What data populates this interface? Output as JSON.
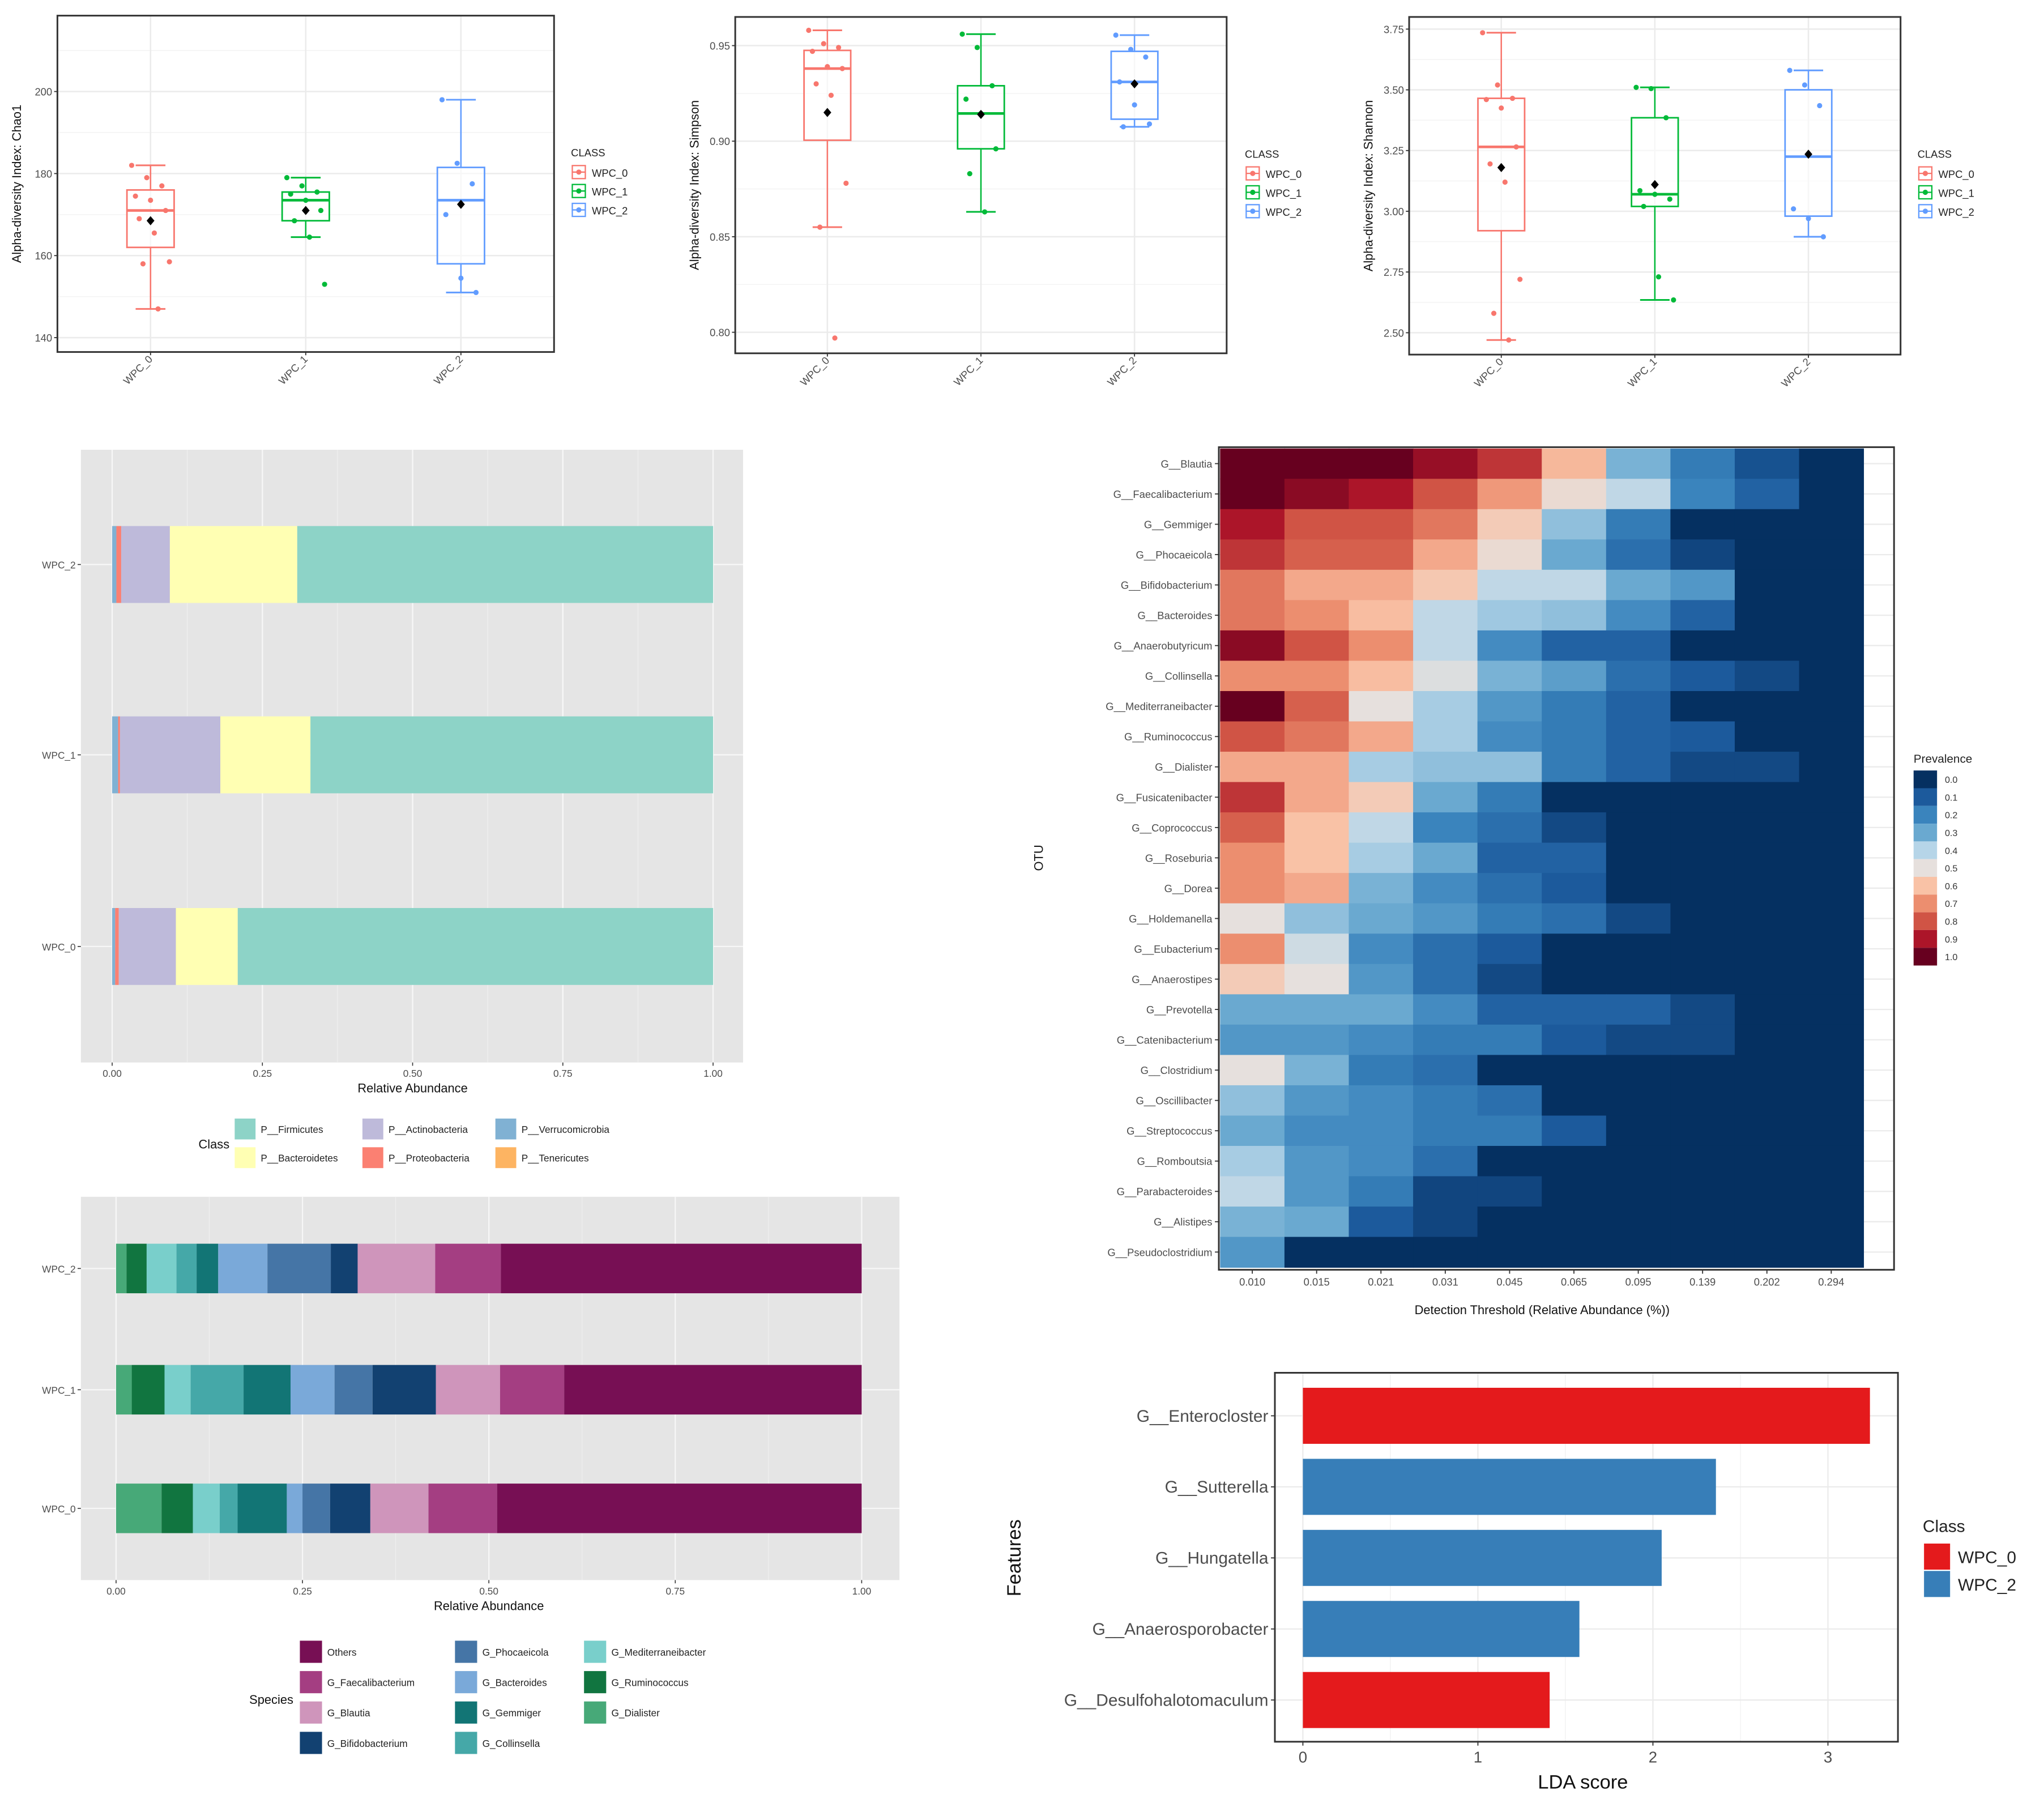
{
  "chart_data": [
    {
      "type": "box",
      "id": "chao1",
      "ylabel": "Alpha-diversity Index: Chao1",
      "ylim": [
        136.5,
        218.5
      ],
      "yticks": [
        140,
        160,
        180,
        200
      ],
      "categories": [
        "WPC_0",
        "WPC_1",
        "WPC_2"
      ],
      "legend_title": "CLASS",
      "colors": [
        "#f8766d",
        "#00ba38",
        "#619cff"
      ],
      "boxes": [
        {
          "whisker_low": 147,
          "q1": 162,
          "median": 171,
          "q3": 176,
          "whisker_high": 182,
          "mean": 168.5,
          "points": [
            182,
            179,
            177,
            174.5,
            173.5,
            171,
            169,
            165.5,
            158.5,
            158,
            147
          ]
        },
        {
          "whisker_low": 164.5,
          "q1": 168.5,
          "median": 173.5,
          "q3": 175.5,
          "whisker_high": 179,
          "mean": 171,
          "points": [
            179,
            177,
            175.5,
            175,
            173.5,
            171,
            168.5,
            164.5,
            153
          ]
        },
        {
          "whisker_low": 151,
          "q1": 158,
          "median": 173.5,
          "q3": 181.5,
          "whisker_high": 198,
          "mean": 172.5,
          "points": [
            198,
            182.5,
            177.5,
            170,
            154.5,
            151
          ]
        }
      ]
    },
    {
      "type": "box",
      "id": "simpson",
      "ylabel": "Alpha-diversity Index: Simpson",
      "ylim": [
        0.789,
        0.965
      ],
      "yticks": [
        0.8,
        0.85,
        0.9,
        0.95
      ],
      "ytick_labels": [
        "0.80",
        "0.85",
        "0.90",
        "0.95"
      ],
      "categories": [
        "WPC_0",
        "WPC_1",
        "WPC_2"
      ],
      "legend_title": "CLASS",
      "colors": [
        "#f8766d",
        "#00ba38",
        "#619cff"
      ],
      "boxes": [
        {
          "whisker_low": 0.855,
          "q1": 0.9005,
          "median": 0.938,
          "q3": 0.9475,
          "whisker_high": 0.958,
          "mean": 0.915,
          "points": [
            0.958,
            0.951,
            0.949,
            0.947,
            0.939,
            0.938,
            0.93,
            0.924,
            0.878,
            0.855,
            0.797
          ]
        },
        {
          "whisker_low": 0.863,
          "q1": 0.896,
          "median": 0.9145,
          "q3": 0.929,
          "whisker_high": 0.956,
          "mean": 0.914,
          "points": [
            0.956,
            0.949,
            0.929,
            0.922,
            0.9145,
            0.896,
            0.883,
            0.863
          ]
        },
        {
          "whisker_low": 0.9075,
          "q1": 0.9115,
          "median": 0.931,
          "q3": 0.947,
          "whisker_high": 0.9555,
          "mean": 0.93,
          "points": [
            0.9555,
            0.948,
            0.944,
            0.931,
            0.919,
            0.909,
            0.9075
          ]
        }
      ]
    },
    {
      "type": "box",
      "id": "shannon",
      "ylabel": "Alpha-diversity Index: Shannon",
      "ylim": [
        2.41,
        3.8
      ],
      "yticks": [
        2.5,
        2.75,
        3.0,
        3.25,
        3.5,
        3.75
      ],
      "ytick_labels": [
        "2.50",
        "2.75",
        "3.00",
        "3.25",
        "3.50",
        "3.75"
      ],
      "categories": [
        "WPC_0",
        "WPC_1",
        "WPC_2"
      ],
      "legend_title": "CLASS",
      "colors": [
        "#f8766d",
        "#00ba38",
        "#619cff"
      ],
      "boxes": [
        {
          "whisker_low": 2.47,
          "q1": 2.92,
          "median": 3.265,
          "q3": 3.465,
          "whisker_high": 3.735,
          "mean": 3.18,
          "points": [
            3.735,
            3.52,
            3.465,
            3.46,
            3.425,
            3.265,
            3.195,
            3.12,
            2.72,
            2.58,
            2.47
          ]
        },
        {
          "whisker_low": 2.635,
          "q1": 3.02,
          "median": 3.07,
          "q3": 3.385,
          "whisker_high": 3.51,
          "mean": 3.11,
          "points": [
            3.51,
            3.505,
            3.385,
            3.085,
            3.07,
            3.05,
            3.02,
            2.73,
            2.635
          ]
        },
        {
          "whisker_low": 2.895,
          "q1": 2.98,
          "median": 3.225,
          "q3": 3.5,
          "whisker_high": 3.58,
          "mean": 3.235,
          "points": [
            3.58,
            3.52,
            3.435,
            3.01,
            2.97,
            2.895
          ]
        }
      ]
    },
    {
      "type": "bar",
      "id": "phylum",
      "orientation": "horizontal-stacked",
      "xlabel": "Relative Abundance",
      "xlim": [
        0,
        1
      ],
      "xticks": [
        0,
        0.25,
        0.5,
        0.75,
        1
      ],
      "xtick_labels": [
        "0.00",
        "0.25",
        "0.50",
        "0.75",
        "1.00"
      ],
      "categories": [
        "WPC_2",
        "WPC_1",
        "WPC_0"
      ],
      "legend_title": "Class",
      "series": [
        {
          "name": "P__Verrucomicrobia",
          "color": "#80b1d3",
          "values": [
            0.007,
            0.01,
            0.005
          ]
        },
        {
          "name": "P__Proteobacteria",
          "color": "#fb8072",
          "values": [
            0.008,
            0.003,
            0.006
          ]
        },
        {
          "name": "P__Actinobacteria",
          "color": "#bebada",
          "values": [
            0.081,
            0.167,
            0.095
          ]
        },
        {
          "name": "P__Bacteroidetes",
          "color": "#ffffb3",
          "values": [
            0.212,
            0.15,
            0.103
          ]
        },
        {
          "name": "P__Firmicutes",
          "color": "#8dd3c7",
          "values": [
            0.692,
            0.67,
            0.791
          ]
        },
        {
          "name": "P__Tenericutes",
          "color": "#fdb462",
          "values": [
            0,
            0,
            0
          ]
        }
      ],
      "legend_order": [
        "P__Firmicutes",
        "P__Bacteroidetes",
        "P__Actinobacteria",
        "P__Proteobacteria",
        "P__Verrucomicrobia",
        "P__Tenericutes"
      ]
    },
    {
      "type": "bar",
      "id": "species",
      "orientation": "horizontal-stacked",
      "xlabel": "Relative Abundance",
      "xlim": [
        0,
        1
      ],
      "xticks": [
        0,
        0.25,
        0.5,
        0.75,
        1
      ],
      "xtick_labels": [
        "0.00",
        "0.25",
        "0.50",
        "0.75",
        "1.00"
      ],
      "categories": [
        "WPC_2",
        "WPC_1",
        "WPC_0"
      ],
      "legend_title": "Species",
      "series": [
        {
          "name": "G_Dialister",
          "color": "#47a978",
          "values": [
            0.014,
            0.021,
            0.061
          ]
        },
        {
          "name": "G_Ruminococcus",
          "color": "#117540",
          "values": [
            0.027,
            0.044,
            0.042
          ]
        },
        {
          "name": "G_Mediterraneibacter",
          "color": "#79cfcb",
          "values": [
            0.04,
            0.035,
            0.036
          ]
        },
        {
          "name": "G_Collinsella",
          "color": "#45a8a8",
          "values": [
            0.027,
            0.071,
            0.024
          ]
        },
        {
          "name": "G_Gemmiger",
          "color": "#127575",
          "values": [
            0.029,
            0.063,
            0.066
          ]
        },
        {
          "name": "G_Bacteroides",
          "color": "#7aa9d9",
          "values": [
            0.066,
            0.059,
            0.021
          ]
        },
        {
          "name": "G_Phocaeicola",
          "color": "#4575a6",
          "values": [
            0.085,
            0.051,
            0.037
          ]
        },
        {
          "name": "G_Bifidobacterium",
          "color": "#124171",
          "values": [
            0.036,
            0.085,
            0.054
          ]
        },
        {
          "name": "G_Blautia",
          "color": "#cf95bb",
          "values": [
            0.104,
            0.086,
            0.078
          ]
        },
        {
          "name": "G_Faecalibacterium",
          "color": "#a43e82",
          "values": [
            0.088,
            0.086,
            0.092
          ]
        },
        {
          "name": "Others",
          "color": "#770f54",
          "values": [
            0.484,
            0.399,
            0.489
          ]
        }
      ],
      "legend_order": [
        "Others",
        "G_Faecalibacterium",
        "G_Blautia",
        "G_Bifidobacterium",
        "G_Phocaeicola",
        "G_Bacteroides",
        "G_Gemmiger",
        "G_Collinsella",
        "G_Mediterraneibacter",
        "G_Ruminococcus",
        "G_Dialister"
      ]
    },
    {
      "type": "heatmap",
      "id": "core-heatmap",
      "xlabel": "Detection Threshold (Relative Abundance (%))",
      "ylabel": "OTU",
      "x": [
        "0.010",
        "0.015",
        "0.021",
        "0.031",
        "0.045",
        "0.065",
        "0.095",
        "0.139",
        "0.202",
        "0.294"
      ],
      "y": [
        "G__Blautia",
        "G__Faecalibacterium",
        "G__Gemmiger",
        "G__Phocaeicola",
        "G__Bifidobacterium",
        "G__Bacteroides",
        "G__Anaerobutyricum",
        "G__Collinsella",
        "G__Mediterraneibacter",
        "G__Ruminococcus",
        "G__Dialister",
        "G__Fusicatenibacter",
        "G__Coprococcus",
        "G__Roseburia",
        "G__Dorea",
        "G__Holdemanella",
        "G__Eubacterium",
        "G__Anaerostipes",
        "G__Prevotella",
        "G__Catenibacterium",
        "G__Clostridium",
        "G__Oscillibacter",
        "G__Streptococcus",
        "G__Romboutsia",
        "G__Parabacteroides",
        "G__Alistipes",
        "G__Pseudoclostridium"
      ],
      "values": [
        [
          1.0,
          1.0,
          1.0,
          0.93,
          0.85,
          0.62,
          0.32,
          0.18,
          0.08,
          0.0
        ],
        [
          1.0,
          0.95,
          0.9,
          0.8,
          0.68,
          0.52,
          0.42,
          0.2,
          0.12,
          0.0
        ],
        [
          0.9,
          0.8,
          0.8,
          0.74,
          0.57,
          0.35,
          0.18,
          0.0,
          0.0,
          0.0
        ],
        [
          0.85,
          0.78,
          0.78,
          0.65,
          0.52,
          0.3,
          0.15,
          0.05,
          0.0,
          0.0
        ],
        [
          0.74,
          0.65,
          0.65,
          0.58,
          0.42,
          0.42,
          0.3,
          0.25,
          0.0,
          0.0
        ],
        [
          0.74,
          0.7,
          0.61,
          0.42,
          0.37,
          0.35,
          0.22,
          0.12,
          0.0,
          0.0
        ],
        [
          0.95,
          0.8,
          0.7,
          0.42,
          0.22,
          0.12,
          0.12,
          0.0,
          0.0,
          0.0
        ],
        [
          0.7,
          0.7,
          0.61,
          0.48,
          0.32,
          0.27,
          0.15,
          0.1,
          0.06,
          0.0
        ],
        [
          1.0,
          0.78,
          0.5,
          0.38,
          0.25,
          0.18,
          0.12,
          0.0,
          0.0,
          0.0
        ],
        [
          0.8,
          0.74,
          0.65,
          0.38,
          0.22,
          0.18,
          0.12,
          0.1,
          0.0,
          0.0
        ],
        [
          0.65,
          0.65,
          0.38,
          0.35,
          0.35,
          0.18,
          0.12,
          0.06,
          0.06,
          0.0
        ],
        [
          0.85,
          0.65,
          0.57,
          0.3,
          0.18,
          0.0,
          0.0,
          0.0,
          0.0,
          0.0
        ],
        [
          0.78,
          0.6,
          0.42,
          0.2,
          0.15,
          0.06,
          0.0,
          0.0,
          0.0,
          0.0
        ],
        [
          0.7,
          0.6,
          0.38,
          0.3,
          0.12,
          0.12,
          0.0,
          0.0,
          0.0,
          0.0
        ],
        [
          0.7,
          0.65,
          0.32,
          0.22,
          0.15,
          0.1,
          0.0,
          0.0,
          0.0,
          0.0
        ],
        [
          0.5,
          0.35,
          0.3,
          0.25,
          0.18,
          0.15,
          0.06,
          0.0,
          0.0,
          0.0
        ],
        [
          0.7,
          0.45,
          0.22,
          0.15,
          0.1,
          0.0,
          0.0,
          0.0,
          0.0,
          0.0
        ],
        [
          0.57,
          0.5,
          0.25,
          0.15,
          0.06,
          0.0,
          0.0,
          0.0,
          0.0,
          0.0
        ],
        [
          0.3,
          0.3,
          0.3,
          0.22,
          0.12,
          0.12,
          0.12,
          0.06,
          0.0,
          0.0
        ],
        [
          0.25,
          0.25,
          0.22,
          0.18,
          0.18,
          0.1,
          0.06,
          0.06,
          0.0,
          0.0
        ],
        [
          0.5,
          0.32,
          0.18,
          0.15,
          0.0,
          0.0,
          0.0,
          0.0,
          0.0,
          0.0
        ],
        [
          0.35,
          0.25,
          0.22,
          0.18,
          0.15,
          0.0,
          0.0,
          0.0,
          0.0,
          0.0
        ],
        [
          0.3,
          0.22,
          0.22,
          0.18,
          0.18,
          0.1,
          0.0,
          0.0,
          0.0,
          0.0
        ],
        [
          0.38,
          0.25,
          0.22,
          0.15,
          0.0,
          0.0,
          0.0,
          0.0,
          0.0,
          0.0
        ],
        [
          0.42,
          0.25,
          0.18,
          0.05,
          0.05,
          0.0,
          0.0,
          0.0,
          0.0,
          0.0
        ],
        [
          0.32,
          0.3,
          0.1,
          0.05,
          0.0,
          0.0,
          0.0,
          0.0,
          0.0,
          0.0
        ],
        [
          0.25,
          0.0,
          0.0,
          0.0,
          0.0,
          0.0,
          0.0,
          0.0,
          0.0,
          0.0
        ]
      ],
      "legend_title": "Prevalence",
      "legend_values": [
        "0.0",
        "0.1",
        "0.2",
        "0.3",
        "0.4",
        "0.5",
        "0.6",
        "0.7",
        "0.8",
        "0.9",
        "1.0"
      ],
      "palette": [
        "#053061",
        "#1c5a9c",
        "#3a84bd",
        "#6aa9d0",
        "#b6d5e8",
        "#e6e0dd",
        "#f9c2a6",
        "#ec8e6f",
        "#d05445",
        "#ac1529",
        "#67001f"
      ]
    },
    {
      "type": "bar",
      "id": "lda",
      "orientation": "horizontal",
      "xlabel": "LDA score",
      "ylabel": "Features",
      "xlim": [
        -0.16,
        3.4
      ],
      "xticks": [
        0,
        1,
        2,
        3
      ],
      "categories": [
        "G__Enterocloster",
        "G__Sutterella",
        "G__Hungatella",
        "G__Anaerosporobacter",
        "G__Desulfohalotomaculum"
      ],
      "values": [
        3.24,
        2.36,
        2.05,
        1.58,
        1.41
      ],
      "class": [
        "WPC_0",
        "WPC_2",
        "WPC_2",
        "WPC_2",
        "WPC_0"
      ],
      "legend_title": "Class",
      "legend": [
        {
          "name": "WPC_0",
          "color": "#e41a1c"
        },
        {
          "name": "WPC_2",
          "color": "#377eb8"
        }
      ]
    }
  ]
}
